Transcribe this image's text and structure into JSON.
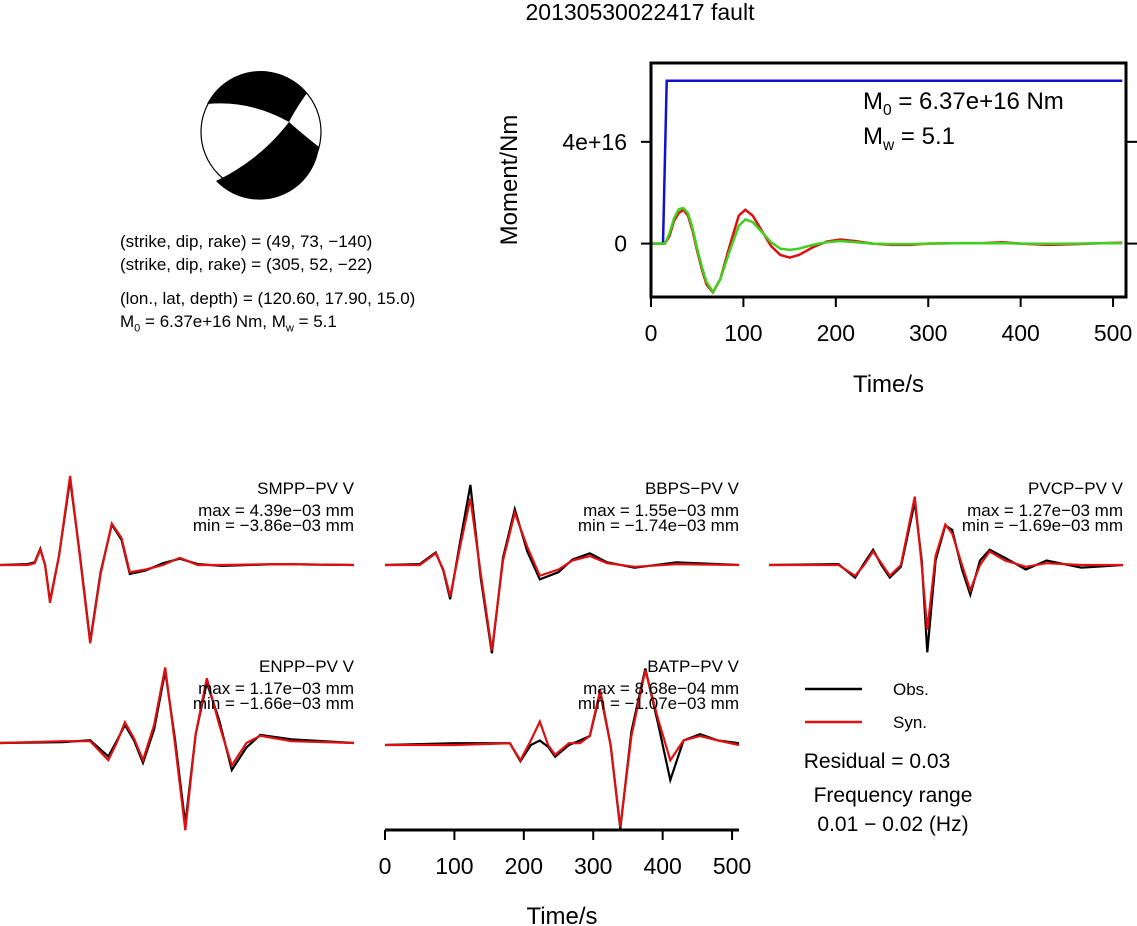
{
  "title": "20130530022417 fault",
  "mechanism": {
    "lines": [
      [
        "(strike, dip, rake) = (49, 73, −140)"
      ],
      [
        "(strike, dip, rake) = (305, 52, −22)"
      ],
      [
        "(lon., lat, depth) = (120.60, 17.90, 15.0)"
      ],
      [
        "M",
        "0",
        " = 6.37e+16 Nm, M",
        "w",
        " = 5.1"
      ]
    ]
  },
  "chart_data": [
    {
      "type": "line",
      "xlabel": "Time/s",
      "ylabel": "Moment/Nm",
      "xlim": [
        0,
        514
      ],
      "xticks": [
        0,
        100,
        200,
        300,
        400,
        500
      ],
      "ylim": [
        -2.1e+16,
        7.1e+16
      ],
      "yticks": [
        0,
        {
          "value": 4e+16,
          "label": "4e+16"
        }
      ],
      "annotations": [
        [
          "M",
          "0",
          " = 6.37e+16 Nm"
        ],
        [
          "M",
          "w",
          " = 5.1"
        ]
      ],
      "x": [
        0,
        10,
        15,
        20,
        25,
        30,
        35,
        40,
        45,
        50,
        55,
        60,
        67,
        75,
        85,
        95,
        102,
        110,
        120,
        130,
        140,
        150,
        160,
        175,
        190,
        205,
        220,
        240,
        260,
        280,
        300,
        330,
        360,
        380,
        400,
        430,
        460,
        490,
        510
      ],
      "series": [
        {
          "color": "#1010d0",
          "x": [
            0,
            13,
            17,
            510
          ],
          "values": [
            0,
            0,
            6.4e+16,
            6.4e+16
          ]
        },
        {
          "color": "#e01010",
          "values": [
            0,
            0,
            0,
            3000000000000000.0,
            9000000000000000.0,
            1.2e+16,
            1.33e+16,
            1.1e+16,
            5000000000000000.0,
            -3000000000000000.0,
            -1e+16,
            -1.6e+16,
            -1.92e+16,
            -1.4e+16,
            -1000000000000000.0,
            1.1e+16,
            1.33e+16,
            1.1e+16,
            5000000000000000.0,
            -1000000000000000.0,
            -4500000000000000.0,
            -5500000000000000.0,
            -4500000000000000.0,
            -1500000000000000.0,
            800000000000000.0,
            1600000000000000.0,
            1000000000000000.0,
            0,
            -500000000000000.0,
            -500000000000000.0,
            0,
            200000000000000.0,
            200000000000000.0,
            500000000000000.0,
            0,
            -500000000000000.0,
            -200000000000000.0,
            200000000000000.0,
            300000000000000.0
          ]
        },
        {
          "color": "#40d020",
          "values": [
            0,
            0,
            0,
            4000000000000000.0,
            1e+16,
            1.35e+16,
            1.4e+16,
            1.2e+16,
            6000000000000000.0,
            -2000000000000000.0,
            -9000000000000000.0,
            -1.5e+16,
            -1.9e+16,
            -1.4e+16,
            -3000000000000000.0,
            7000000000000000.0,
            9500000000000000.0,
            8500000000000000.0,
            4500000000000000.0,
            500000000000000.0,
            -2000000000000000.0,
            -2500000000000000.0,
            -2000000000000000.0,
            -500000000000000.0,
            500000000000000.0,
            1000000000000000.0,
            600000000000000.0,
            0,
            -200000000000000.0,
            -200000000000000.0,
            0,
            100000000000000.0,
            100000000000000.0,
            200000000000000.0,
            0,
            -100000000000000.0,
            0,
            100000000000000.0,
            100000000000000.0
          ]
        }
      ]
    },
    {
      "type": "waveform",
      "xlabel": "Time/s",
      "xlim": [
        0,
        510
      ],
      "xticks": [
        0,
        100,
        200,
        300,
        400,
        500
      ],
      "ylim": [
        -1,
        1
      ],
      "series": [
        {
          "name": "Obs.",
          "color": "#000000"
        },
        {
          "name": "Syn.",
          "color": "#e01010"
        }
      ],
      "residual": "Residual = 0.03",
      "frequency_label": "Frequency range",
      "frequency_range": "0.01 − 0.02 (Hz)",
      "panels": [
        {
          "station": "SMPP−PV V",
          "max": "max = 4.39e−03 mm",
          "min": "min = −3.86e−03 mm",
          "x": [
            0,
            40,
            50,
            58,
            65,
            72,
            85,
            101,
            115,
            130,
            145,
            161,
            175,
            187,
            210,
            235,
            259,
            285,
            320,
            400,
            510
          ],
          "values": [
            [
              0,
              0.01,
              0.03,
              0.18,
              0.0,
              -0.4,
              0.1,
              0.95,
              0.12,
              -0.85,
              -0.08,
              0.45,
              0.28,
              -0.1,
              -0.06,
              0.02,
              0.07,
              0.01,
              -0.01,
              0.01,
              0
            ],
            [
              0,
              0,
              0.02,
              0.17,
              0.0,
              -0.42,
              0.1,
              0.99,
              0.1,
              -0.87,
              -0.1,
              0.46,
              0.3,
              -0.08,
              -0.05,
              0.0,
              0.08,
              0.0,
              0.0,
              0.01,
              0
            ]
          ]
        },
        {
          "station": "BBPS−PV V",
          "max": "max = 1.55e−03 mm",
          "min": "min = −1.74e−03 mm",
          "x": [
            0,
            50,
            73,
            84,
            94,
            108,
            123,
            138,
            154,
            170,
            187,
            205,
            223,
            250,
            270,
            295,
            320,
            360,
            420,
            510
          ],
          "values": [
            [
              0,
              0.01,
              0.14,
              -0.06,
              -0.38,
              0.25,
              0.89,
              -0.15,
              -0.98,
              0.08,
              0.62,
              0.15,
              -0.16,
              -0.08,
              0.06,
              0.13,
              0.03,
              -0.03,
              0.03,
              0
            ],
            [
              0,
              0,
              0.13,
              -0.05,
              -0.35,
              0.2,
              0.74,
              -0.1,
              -0.95,
              0.05,
              0.58,
              0.2,
              -0.12,
              -0.05,
              0.05,
              0.1,
              0.02,
              -0.02,
              0.01,
              0
            ]
          ]
        },
        {
          "station": "PVCP−PV V",
          "max": "max = 1.27e−03 mm",
          "min": "min = −1.69e−03 mm",
          "x": [
            0,
            100,
            124,
            137,
            150,
            162,
            174,
            190,
            210,
            220,
            228,
            240,
            254,
            264,
            278,
            290,
            304,
            318,
            340,
            370,
            400,
            450,
            510
          ],
          "values": [
            [
              0,
              0.01,
              -0.14,
              0.02,
              0.17,
              0.0,
              -0.14,
              -0.02,
              0.7,
              0.05,
              -0.97,
              0.05,
              0.44,
              0.39,
              -0.05,
              -0.33,
              0.05,
              0.17,
              0.08,
              -0.05,
              0.05,
              -0.03,
              0
            ],
            [
              0,
              0,
              -0.12,
              0,
              0.15,
              0.02,
              -0.12,
              0,
              0.76,
              0,
              -0.72,
              0.1,
              0.45,
              0.35,
              0.0,
              -0.28,
              0.0,
              0.15,
              0.05,
              -0.02,
              0.02,
              0,
              0
            ]
          ]
        },
        {
          "station": "ENPP−PV V",
          "max": "max = 1.17e−03 mm",
          "min": "min = −1.66e−03 mm",
          "x": [
            0,
            90,
            130,
            156,
            168,
            180,
            193,
            206,
            222,
            238,
            252,
            267,
            282,
            298,
            316,
            334,
            355,
            375,
            420,
            510
          ],
          "values": [
            [
              0,
              0.01,
              0.03,
              -0.15,
              0.02,
              0.2,
              0.03,
              -0.22,
              0.15,
              0.8,
              0.05,
              -0.9,
              0.1,
              0.67,
              0.25,
              -0.3,
              -0.05,
              0.09,
              0.04,
              0
            ],
            [
              0,
              0.02,
              0.02,
              -0.19,
              0,
              0.23,
              0.05,
              -0.19,
              0.2,
              0.84,
              0.0,
              -0.97,
              0.1,
              0.72,
              0.2,
              -0.25,
              0,
              0.08,
              0.02,
              0
            ]
          ]
        },
        {
          "station": "BATP−PV V",
          "max": "max = 8.68e−04 mm",
          "min": "min = −1.07e−03 mm",
          "x": [
            0,
            100,
            180,
            195,
            210,
            223,
            235,
            245,
            265,
            281,
            295,
            310,
            325,
            339,
            355,
            375,
            393,
            411,
            430,
            454,
            480,
            510
          ],
          "values": [
            [
              0,
              0.02,
              0.02,
              -0.18,
              0.0,
              0.05,
              -0.02,
              -0.13,
              0.0,
              0.05,
              0.1,
              0.58,
              0.0,
              -0.93,
              0.15,
              0.85,
              0.25,
              -0.39,
              0.05,
              0.12,
              0.05,
              0.02
            ],
            [
              0,
              0,
              0.02,
              -0.17,
              0.05,
              0.26,
              0.0,
              -0.11,
              0.02,
              0.02,
              0.1,
              0.61,
              0.0,
              -0.91,
              0.1,
              0.83,
              0.3,
              -0.17,
              0.05,
              0.1,
              0.05,
              0
            ]
          ]
        }
      ]
    }
  ]
}
